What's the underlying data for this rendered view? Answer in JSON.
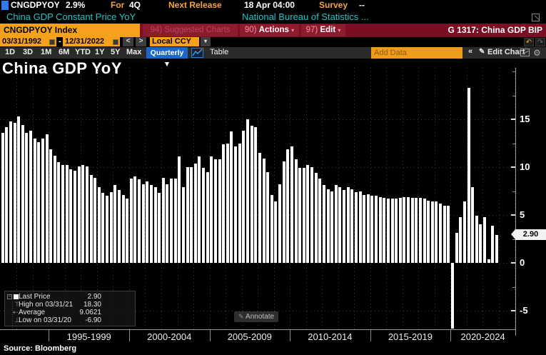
{
  "header": {
    "ticker": "CNGDPYOY",
    "last_value": "2.9%",
    "for_label": "For",
    "for_value": "4Q",
    "next_release_label": "Next Release",
    "next_release_value": "18 Apr 04:00",
    "survey_label": "Survey",
    "survey_value": "--",
    "security_name": "China GDP Constant Price YoY",
    "source_org": "National Bureau of Statistics ...",
    "index_field": "CNGDPYOY Index",
    "suggested_charts_label": "94) Suggested Charts",
    "actions_num": "90)",
    "actions_label": "Actions",
    "edit_num": "97)",
    "edit_label": "Edit",
    "page_ref": "G 1317: China GDP BIP"
  },
  "toolbar": {
    "date_from": "03/31/1992",
    "date_sep": "-",
    "date_to": "12/31/2022",
    "currency": "Local CCY",
    "periods": [
      "1D",
      "3D",
      "1M",
      "6M",
      "YTD",
      "1Y",
      "5Y",
      "Max"
    ],
    "frequency": "Quarterly ▼",
    "table_label": "Table",
    "add_data_placeholder": "Add Data",
    "collapse_label": "«",
    "edit_chart_label": "Edit Chart"
  },
  "chart": {
    "title": "China GDP YoY",
    "last_price_marker": "2.90",
    "annotate_label": "Annotate",
    "source": "Source: Bloomberg",
    "legend": {
      "rows": [
        {
          "label": "Last Price",
          "value": "2.90"
        },
        {
          "label": "High on 03/31/21",
          "value": "18.30"
        },
        {
          "label": "Average",
          "value": "9.0621"
        },
        {
          "label": "Low on 03/31/20",
          "value": "-6.90"
        }
      ]
    }
  },
  "chart_data": {
    "type": "bar",
    "title": "China GDP YoY",
    "unit": "%",
    "frequency": "quarterly",
    "start": "1992-03-31",
    "end": "2022-12-31",
    "ylim": [
      -7.5,
      20
    ],
    "y_ticks": [
      15,
      10,
      5,
      0,
      -5
    ],
    "x_group_labels": [
      "1995-1999",
      "2000-2004",
      "2005-2009",
      "2010-2014",
      "2015-2019",
      "2020-2024"
    ],
    "bar_color": "#ffffff",
    "grid": true,
    "legend_position": "bottom-left",
    "last": 2.9,
    "high": 18.3,
    "average": 9.0621,
    "low": -6.9,
    "values": [
      13.6,
      14.2,
      14.8,
      14.6,
      15.3,
      14.4,
      13.6,
      13.8,
      13.0,
      12.6,
      13.0,
      13.4,
      11.9,
      11.2,
      10.5,
      10.2,
      10.2,
      9.8,
      9.6,
      10.1,
      10.2,
      10.1,
      9.2,
      8.9,
      7.9,
      7.3,
      7.0,
      7.4,
      8.1,
      7.6,
      7.1,
      6.7,
      8.8,
      9.0,
      8.7,
      8.2,
      8.5,
      8.1,
      7.9,
      7.3,
      8.9,
      8.2,
      8.8,
      8.8,
      11.1,
      7.9,
      10.0,
      10.0,
      10.4,
      11.1,
      9.9,
      9.5,
      11.1,
      10.8,
      10.8,
      12.4,
      12.5,
      13.7,
      12.2,
      12.5,
      13.8,
      15.0,
      14.3,
      14.2,
      11.5,
      10.9,
      9.5,
      7.1,
      6.4,
      8.2,
      10.6,
      11.9,
      12.2,
      10.8,
      9.9,
      9.9,
      10.2,
      10.0,
      9.4,
      8.8,
      8.1,
      7.7,
      7.5,
      8.1,
      7.9,
      7.6,
      7.9,
      7.7,
      7.4,
      7.5,
      7.1,
      7.2,
      7.0,
      7.0,
      6.9,
      6.8,
      6.7,
      6.7,
      6.7,
      6.8,
      6.9,
      6.9,
      6.8,
      6.8,
      6.8,
      6.7,
      6.5,
      6.4,
      6.4,
      6.2,
      6.0,
      6.0,
      -6.9,
      3.1,
      4.8,
      6.4,
      18.3,
      7.9,
      4.9,
      4.0,
      4.8,
      0.4,
      3.9,
      2.9
    ]
  },
  "colors": {
    "amber_label": "#f8a33a",
    "orange_field": "#f5a11c",
    "maroon_bar": "#7a0f24",
    "red_button": "#8c1b2e",
    "teal_text": "#1fc6c7",
    "blue_button": "#1b67ca",
    "bar": "#ffffff",
    "background": "#000000"
  }
}
